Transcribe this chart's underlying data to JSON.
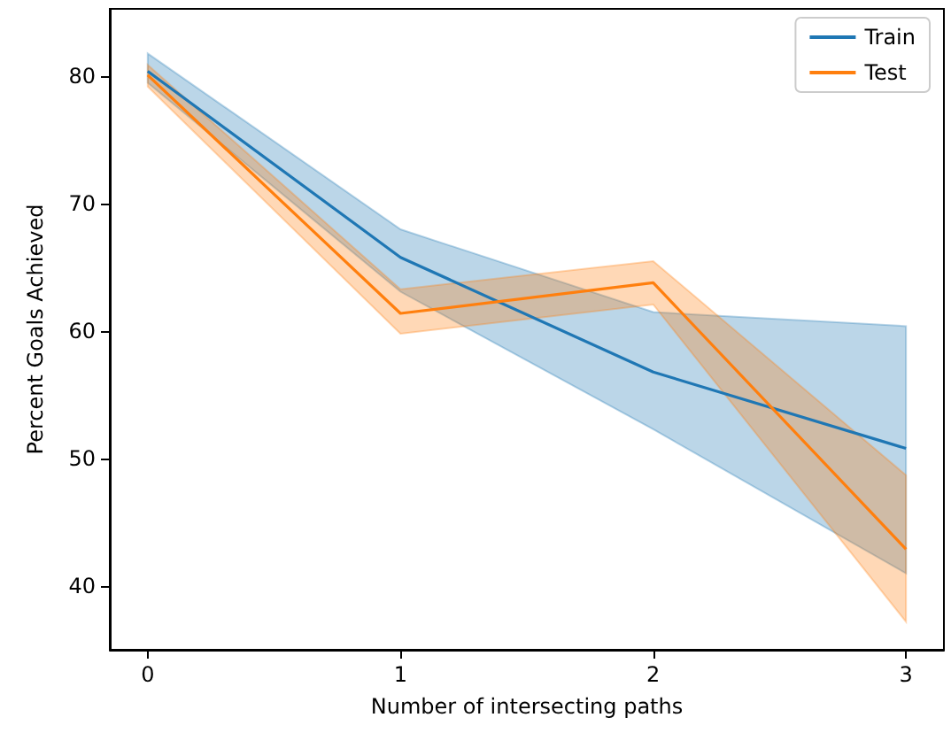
{
  "chart_data": {
    "type": "line",
    "xlabel": "Number of intersecting paths",
    "ylabel": "Percent Goals Achieved",
    "x": [
      0,
      1,
      2,
      3
    ],
    "xlim": [
      -0.15,
      3.15
    ],
    "xticks": [
      0,
      1,
      2,
      3
    ],
    "ylim": [
      35,
      85.3
    ],
    "yticks": [
      40,
      50,
      60,
      70,
      80
    ],
    "grid": false,
    "legend": "top right",
    "marker": "none",
    "line_style": "solid",
    "series": [
      {
        "name": "Train",
        "color": "#1f77b4",
        "values": [
          80.4,
          65.8,
          56.8,
          50.8
        ],
        "lower": [
          79.5,
          63.1,
          52.3,
          41.0
        ],
        "upper": [
          81.8,
          68.0,
          61.5,
          60.4
        ]
      },
      {
        "name": "Test",
        "color": "#ff7f0e",
        "values": [
          80.1,
          61.4,
          63.8,
          42.9
        ],
        "lower": [
          79.2,
          59.8,
          62.1,
          37.2
        ],
        "upper": [
          80.9,
          63.3,
          65.5,
          48.7
        ]
      }
    ]
  }
}
